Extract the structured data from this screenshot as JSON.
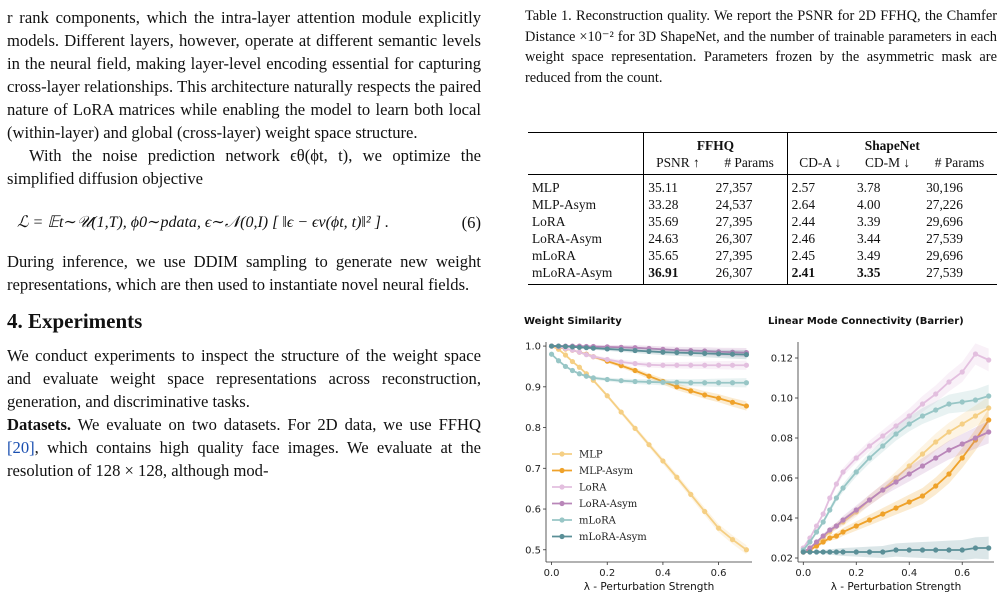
{
  "left": {
    "para1": "r rank components, which the intra-layer attention module explicitly models. Different layers, however, operate at different semantic levels in the neural field, making layer-level encoding essential for capturing cross-layer relationships. This architecture naturally respects the paired nature of LoRA matrices while enabling the model to learn both local (within-layer) and global (cross-layer) weight space structure.",
    "para2": "With the noise prediction network ϵθ(ϕt, t), we optimize the simplified diffusion objective",
    "equation": "ℒ = 𝔼t∼𝒰(1,T), ϕ0∼pdata, ϵ∼𝒩(0,I) [ ‖ϵ − ϵν(ϕt, t)‖² ]  .",
    "equation_number": "(6)",
    "para3": "During inference, we use DDIM sampling to generate new weight representations, which are then used to instantiate novel neural fields.",
    "section_title": "4. Experiments",
    "para4": "We conduct experiments to inspect the structure of the weight space and evaluate weight space representations across reconstruction, generation, and discriminative tasks.",
    "datasets_label": "Datasets.",
    "para5_a": " We evaluate on two datasets. For 2D data, we use FFHQ ",
    "para5_cite": "[20]",
    "para5_b": ", which contains high quality face images. We evaluate at the resolution of 128 × 128, although mod-"
  },
  "caption": "Table 1. Reconstruction quality. We report the PSNR for 2D FFHQ, the Chamfer Distance ×10⁻² for 3D ShapeNet, and the number of trainable parameters in each weight space representation. Parameters frozen by the asymmetric mask are reduced from the count.",
  "table": {
    "group_ffhq": "FFHQ",
    "group_shapenet": "ShapeNet",
    "headers": [
      "PSNR ↑",
      "# Params",
      "CD-A ↓",
      "CD-M ↓",
      "# Params"
    ],
    "rows": [
      {
        "name": "MLP",
        "cells": [
          "35.11",
          "27,357",
          "2.57",
          "3.78",
          "30,196"
        ]
      },
      {
        "name": "MLP-Asym",
        "cells": [
          "33.28",
          "24,537",
          "2.64",
          "4.00",
          "27,226"
        ]
      },
      {
        "name": "LoRA",
        "cells": [
          "35.69",
          "27,395",
          "2.44",
          "3.39",
          "29,696"
        ]
      },
      {
        "name": "LoRA-Asym",
        "cells": [
          "24.63",
          "26,307",
          "2.46",
          "3.44",
          "27,539"
        ]
      },
      {
        "name": "mLoRA",
        "cells": [
          "35.65",
          "27,395",
          "2.45",
          "3.49",
          "29,696"
        ]
      },
      {
        "name": "mLoRA-Asym",
        "cells": [
          "36.91",
          "26,307",
          "2.41",
          "3.35",
          "27,539"
        ]
      }
    ]
  },
  "chart_data": [
    {
      "type": "line",
      "title": "Weight Similarity",
      "xlabel": "λ - Perturbation Strength",
      "ylabel": "",
      "xlim": [
        -0.02,
        0.72
      ],
      "ylim": [
        0.47,
        1.01
      ],
      "xticks": [
        0.0,
        0.2,
        0.4,
        0.6
      ],
      "yticks": [
        0.5,
        0.6,
        0.7,
        0.8,
        0.9,
        1.0
      ],
      "legend": "lower-left",
      "x": [
        0.0,
        0.025,
        0.05,
        0.075,
        0.1,
        0.125,
        0.15,
        0.2,
        0.25,
        0.3,
        0.35,
        0.4,
        0.45,
        0.5,
        0.55,
        0.6,
        0.65,
        0.7
      ],
      "series": [
        {
          "name": "MLP",
          "color": "#f5cf84",
          "values": [
            1.0,
            0.992,
            0.978,
            0.962,
            0.948,
            0.932,
            0.916,
            0.878,
            0.838,
            0.798,
            0.758,
            0.718,
            0.678,
            0.636,
            0.594,
            0.553,
            0.525,
            0.5
          ]
        },
        {
          "name": "MLP-Asym",
          "color": "#efa22a",
          "values": [
            1.0,
            0.997,
            0.993,
            0.99,
            0.985,
            0.98,
            0.974,
            0.963,
            0.952,
            0.94,
            0.926,
            0.913,
            0.9,
            0.89,
            0.88,
            0.872,
            0.862,
            0.853
          ]
        },
        {
          "name": "LoRA",
          "color": "#e3bfdf",
          "values": [
            1.0,
            0.998,
            0.994,
            0.99,
            0.985,
            0.979,
            0.974,
            0.967,
            0.961,
            0.957,
            0.954,
            0.953,
            0.953,
            0.953,
            0.953,
            0.953,
            0.953,
            0.953
          ]
        },
        {
          "name": "LoRA-Asym",
          "color": "#b986b9",
          "values": [
            1.0,
            1.0,
            1.0,
            1.0,
            1.0,
            0.999,
            0.999,
            0.998,
            0.997,
            0.996,
            0.994,
            0.992,
            0.99,
            0.989,
            0.988,
            0.986,
            0.985,
            0.984
          ]
        },
        {
          "name": "mLoRA",
          "color": "#98c6c6",
          "values": [
            0.98,
            0.964,
            0.95,
            0.94,
            0.932,
            0.926,
            0.922,
            0.918,
            0.915,
            0.913,
            0.912,
            0.911,
            0.911,
            0.91,
            0.91,
            0.91,
            0.91,
            0.91
          ]
        },
        {
          "name": "mLoRA-Asym",
          "color": "#5a8f97",
          "values": [
            1.0,
            1.0,
            0.999,
            0.998,
            0.997,
            0.996,
            0.995,
            0.993,
            0.991,
            0.989,
            0.987,
            0.985,
            0.984,
            0.983,
            0.982,
            0.981,
            0.98,
            0.979
          ]
        }
      ]
    },
    {
      "type": "line",
      "title": "Linear Mode Connectivity (Barrier)",
      "xlabel": "λ - Perturbation Strength",
      "ylabel": "",
      "xlim": [
        -0.02,
        0.72
      ],
      "ylim": [
        0.018,
        0.128
      ],
      "xticks": [
        0.0,
        0.2,
        0.4,
        0.6
      ],
      "yticks": [
        0.02,
        0.04,
        0.06,
        0.08,
        0.1,
        0.12
      ],
      "x": [
        0.0,
        0.025,
        0.05,
        0.075,
        0.1,
        0.125,
        0.15,
        0.2,
        0.25,
        0.3,
        0.35,
        0.4,
        0.45,
        0.5,
        0.55,
        0.6,
        0.65,
        0.7
      ],
      "series": [
        {
          "name": "MLP",
          "color": "#f5cf84",
          "values": [
            0.023,
            0.025,
            0.027,
            0.03,
            0.033,
            0.036,
            0.038,
            0.043,
            0.049,
            0.054,
            0.06,
            0.066,
            0.072,
            0.078,
            0.083,
            0.087,
            0.091,
            0.095
          ]
        },
        {
          "name": "MLP-Asym",
          "color": "#efa22a",
          "values": [
            0.023,
            0.024,
            0.026,
            0.028,
            0.03,
            0.031,
            0.033,
            0.036,
            0.039,
            0.042,
            0.045,
            0.048,
            0.051,
            0.056,
            0.062,
            0.07,
            0.079,
            0.089
          ]
        },
        {
          "name": "LoRA",
          "color": "#e3bfdf",
          "values": [
            0.025,
            0.03,
            0.036,
            0.042,
            0.05,
            0.057,
            0.063,
            0.07,
            0.076,
            0.081,
            0.086,
            0.091,
            0.097,
            0.102,
            0.108,
            0.113,
            0.122,
            0.119
          ]
        },
        {
          "name": "LoRA-Asym",
          "color": "#b986b9",
          "values": [
            0.023,
            0.025,
            0.028,
            0.031,
            0.034,
            0.036,
            0.039,
            0.044,
            0.049,
            0.054,
            0.058,
            0.062,
            0.066,
            0.07,
            0.074,
            0.077,
            0.08,
            0.083
          ]
        },
        {
          "name": "mLoRA",
          "color": "#98c6c6",
          "values": [
            0.024,
            0.028,
            0.033,
            0.038,
            0.044,
            0.05,
            0.055,
            0.063,
            0.07,
            0.076,
            0.082,
            0.087,
            0.091,
            0.094,
            0.097,
            0.098,
            0.099,
            0.101
          ]
        },
        {
          "name": "mLoRA-Asym",
          "color": "#5a8f97",
          "values": [
            0.023,
            0.023,
            0.023,
            0.023,
            0.023,
            0.023,
            0.023,
            0.023,
            0.023,
            0.023,
            0.024,
            0.024,
            0.024,
            0.024,
            0.024,
            0.024,
            0.025,
            0.025
          ]
        }
      ]
    }
  ]
}
